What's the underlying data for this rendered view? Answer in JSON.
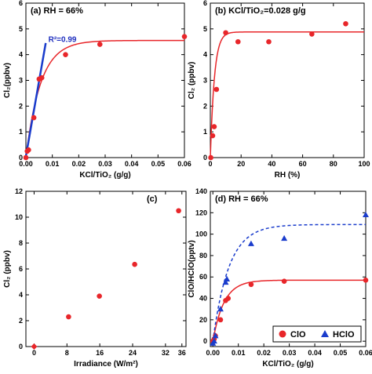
{
  "colors": {
    "red": "#e8262a",
    "blue": "#1a3ccc",
    "axis": "#000000"
  },
  "chart_data": [
    {
      "type": "scatter",
      "panel": "(a)",
      "title": "(a) RH = 66%",
      "xlabel": "KCl/TiO₂ (g/g)",
      "ylabel": "Cl₂(ppbv)",
      "xlim": [
        0,
        0.06
      ],
      "ylim": [
        0,
        6
      ],
      "xticks": [
        0,
        0.01,
        0.02,
        0.03,
        0.04,
        0.05,
        0.06
      ],
      "xtick_labels": [
        "0.00",
        "0.01",
        "0.02",
        "0.03",
        "0.04",
        "0.05",
        "0.06"
      ],
      "yticks": [
        0,
        1,
        2,
        3,
        4,
        5,
        6
      ],
      "ytick_labels": [
        "0",
        "1",
        "2",
        "3",
        "4",
        "5",
        "6"
      ],
      "series": [
        {
          "color": "#e8262a",
          "x": [
            0.0,
            0.0005,
            0.001,
            0.003,
            0.005,
            0.006,
            0.015,
            0.028,
            0.06
          ],
          "y": [
            0.0,
            0.25,
            0.3,
            1.55,
            3.05,
            3.1,
            4.0,
            4.4,
            4.7
          ]
        }
      ],
      "fits": [
        {
          "kind": "saturation",
          "color": "#e8262a",
          "style": "solid",
          "a": 4.55,
          "k": 180
        },
        {
          "kind": "linear",
          "color": "#1a3ccc",
          "style": "solid",
          "x0": 0.0,
          "y0": 0.05,
          "x1": 0.0075,
          "y1": 4.45
        }
      ],
      "annotations": [
        {
          "text": "R²=0.99"
        }
      ]
    },
    {
      "type": "scatter",
      "panel": "(b)",
      "title": "(b) KCl/TiO₂=0.028 g/g",
      "xlabel": "RH (%)",
      "ylabel": "Cl₂ (ppbv)",
      "xlim": [
        0,
        100
      ],
      "ylim": [
        0,
        6
      ],
      "xticks": [
        0,
        20,
        40,
        60,
        80,
        100
      ],
      "xtick_labels": [
        "0",
        "20",
        "40",
        "60",
        "80",
        "100"
      ],
      "yticks": [
        0,
        1,
        2,
        3,
        4,
        5,
        6
      ],
      "ytick_labels": [
        "0",
        "1",
        "2",
        "3",
        "4",
        "5",
        "6"
      ],
      "series": [
        {
          "color": "#e8262a",
          "x": [
            0.3,
            1.5,
            2.5,
            4.0,
            10,
            18,
            38,
            66,
            88
          ],
          "y": [
            0.0,
            0.85,
            1.2,
            2.65,
            4.85,
            4.5,
            4.5,
            4.8,
            5.2
          ]
        }
      ],
      "fits": [
        {
          "kind": "saturation",
          "color": "#e8262a",
          "style": "solid",
          "a": 4.88,
          "k": 0.38
        }
      ]
    },
    {
      "type": "scatter",
      "panel": "(c)",
      "title": "(c)",
      "xlabel": "Irradiance (W/m²)",
      "ylabel": "Cl₂ (ppbv)",
      "xlim": [
        -2,
        37
      ],
      "ylim": [
        0,
        12
      ],
      "xticks": [
        0,
        8,
        16,
        24,
        32,
        36
      ],
      "xtick_labels": [
        "0",
        "8",
        "16",
        "24",
        "32",
        "36"
      ],
      "yticks": [
        0,
        2,
        4,
        6,
        8,
        10,
        12
      ],
      "ytick_labels": [
        "0",
        "2",
        "4",
        "6",
        "8",
        "10",
        "12"
      ],
      "series": [
        {
          "color": "#e8262a",
          "x": [
            8.4,
            15.9,
            24.5,
            35.2
          ],
          "y": [
            2.3,
            3.9,
            6.35,
            10.5
          ]
        }
      ],
      "extra_marks": [
        {
          "shape": "diamond",
          "x": 0,
          "y": 0.0
        }
      ]
    },
    {
      "type": "scatter",
      "panel": "(d)",
      "title": "(d) RH = 66%",
      "xlabel": "KCl/TiO₂ (g/g)",
      "ylabel": "ClO/HClO(pptv)",
      "xlim": [
        -0.001,
        0.06
      ],
      "ylim": [
        -5,
        140
      ],
      "xticks": [
        0,
        0.01,
        0.02,
        0.03,
        0.04,
        0.05,
        0.06
      ],
      "xtick_labels": [
        "0.00",
        "0.01",
        "0.02",
        "0.03",
        "0.04",
        "0.05",
        "0.06"
      ],
      "yticks": [
        0,
        20,
        40,
        60,
        80,
        100,
        120,
        140
      ],
      "ytick_labels": [
        "0",
        "20",
        "40",
        "60",
        "80",
        "100",
        "120",
        "140"
      ],
      "series": [
        {
          "name": "ClO",
          "marker": "circle",
          "color": "#e8262a",
          "x": [
            0.0,
            0.0005,
            0.001,
            0.003,
            0.005,
            0.006,
            0.015,
            0.028,
            0.06
          ],
          "y": [
            0,
            2,
            5,
            20,
            38,
            40,
            53,
            56,
            57
          ]
        },
        {
          "name": "HClO",
          "marker": "triangle",
          "color": "#1a3ccc",
          "x": [
            0.0,
            0.0005,
            0.001,
            0.003,
            0.005,
            0.0055,
            0.015,
            0.028,
            0.06
          ],
          "y": [
            -2,
            0,
            5,
            30,
            55,
            58,
            91,
            96,
            118
          ]
        }
      ],
      "fits": [
        {
          "kind": "saturation",
          "color": "#e8262a",
          "style": "solid",
          "a": 57,
          "k": 230
        },
        {
          "kind": "saturation",
          "color": "#1a3ccc",
          "style": "dashed",
          "a": 109,
          "k": 160
        }
      ],
      "legend": {
        "position": "bottom-right",
        "entries": [
          "ClO",
          "HClO"
        ]
      }
    }
  ]
}
